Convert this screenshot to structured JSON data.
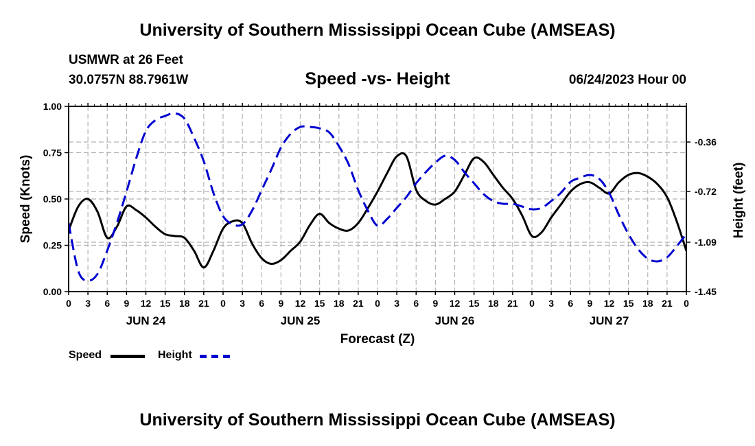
{
  "header": {
    "title": "University of Southern Mississippi Ocean Cube (AMSEAS)",
    "station": "USMWR at 26 Feet",
    "coords": "30.0757N  88.7961W",
    "subtitle": "Speed -vs- Height",
    "date": "06/24/2023 Hour 00"
  },
  "footer": {
    "title": "University of Southern Mississippi Ocean Cube (AMSEAS)"
  },
  "legend": {
    "speed_label": "Speed",
    "height_label": "Height"
  },
  "colors": {
    "speed": "#000000",
    "height": "#0000d0",
    "grid": "#b4b4b4"
  },
  "chart_data": {
    "type": "line",
    "title": "Speed -vs- Height",
    "xlabel": "Forecast (Z)",
    "ylabel": "Speed (Knots)",
    "y2label": "Height (feet)",
    "x_tick_labels": [
      "0",
      "3",
      "6",
      "9",
      "12",
      "15",
      "18",
      "21",
      "0",
      "3",
      "6",
      "9",
      "12",
      "15",
      "18",
      "21",
      "0",
      "3",
      "6",
      "9",
      "12",
      "15",
      "18",
      "21",
      "0",
      "3",
      "6",
      "9",
      "12",
      "15",
      "18",
      "21",
      "0"
    ],
    "date_labels": [
      {
        "label": "JUN 24",
        "hour": 12
      },
      {
        "label": "JUN 25",
        "hour": 36
      },
      {
        "label": "JUN 26",
        "hour": 60
      },
      {
        "label": "JUN 27",
        "hour": 84
      }
    ],
    "xlim": [
      0,
      96
    ],
    "ylim": [
      0,
      1.0
    ],
    "y_ticks": [
      "0.00",
      "0.25",
      "0.50",
      "0.75",
      "1.00"
    ],
    "y2lim": [
      -1.45,
      -0.1
    ],
    "y2_ticks": [
      {
        "value": -1.45,
        "label": "-1.45"
      },
      {
        "value": -1.09,
        "label": "-1.09"
      },
      {
        "value": -0.72,
        "label": "-0.72"
      },
      {
        "value": -0.36,
        "label": "-0.36"
      }
    ],
    "series": [
      {
        "name": "Speed",
        "axis": "left",
        "x": [
          0,
          1.5,
          3,
          4.5,
          6,
          7.5,
          9,
          10.5,
          12,
          13.5,
          15,
          16.5,
          18,
          19.5,
          21,
          22.5,
          24,
          25.5,
          27,
          28.5,
          30,
          31.5,
          33,
          34.5,
          36,
          37.5,
          39,
          40.5,
          42,
          43.5,
          45,
          46.5,
          48,
          49.5,
          51,
          52.5,
          54,
          55.5,
          57,
          58.5,
          60,
          61.5,
          63,
          64.5,
          66,
          67.5,
          69,
          70.5,
          72,
          73.5,
          75,
          76.5,
          78,
          79.5,
          81,
          82.5,
          84,
          85.5,
          87,
          88.5,
          90,
          91.5,
          93,
          94.5,
          96
        ],
        "values": [
          0.33,
          0.46,
          0.5,
          0.43,
          0.29,
          0.35,
          0.46,
          0.44,
          0.4,
          0.35,
          0.31,
          0.3,
          0.29,
          0.22,
          0.13,
          0.22,
          0.34,
          0.38,
          0.37,
          0.26,
          0.18,
          0.15,
          0.17,
          0.22,
          0.27,
          0.36,
          0.42,
          0.37,
          0.34,
          0.33,
          0.37,
          0.45,
          0.54,
          0.64,
          0.73,
          0.73,
          0.55,
          0.49,
          0.47,
          0.5,
          0.54,
          0.63,
          0.72,
          0.7,
          0.63,
          0.56,
          0.5,
          0.41,
          0.3,
          0.32,
          0.4,
          0.47,
          0.54,
          0.58,
          0.59,
          0.56,
          0.53,
          0.59,
          0.63,
          0.64,
          0.62,
          0.58,
          0.51,
          0.38,
          0.22
        ]
      },
      {
        "name": "Height",
        "axis": "right",
        "x": [
          0,
          1.5,
          3,
          4.5,
          6,
          7.5,
          9,
          10.5,
          12,
          13.5,
          15,
          16.5,
          18,
          19.5,
          21,
          22.5,
          24,
          25.5,
          27,
          28.5,
          30,
          31.5,
          33,
          34.5,
          36,
          37.5,
          39,
          40.5,
          42,
          43.5,
          45,
          46.5,
          48,
          49.5,
          51,
          52.5,
          54,
          55.5,
          57,
          58.5,
          60,
          61.5,
          63,
          64.5,
          66,
          67.5,
          69,
          70.5,
          72,
          73.5,
          75,
          76.5,
          78,
          79.5,
          81,
          82.5,
          84,
          85.5,
          87,
          88.5,
          90,
          91.5,
          93,
          94.5,
          96
        ],
        "values": [
          -0.95,
          -1.3,
          -1.37,
          -1.32,
          -1.15,
          -0.95,
          -0.72,
          -0.48,
          -0.28,
          -0.2,
          -0.17,
          -0.15,
          -0.19,
          -0.33,
          -0.5,
          -0.73,
          -0.9,
          -0.96,
          -0.96,
          -0.86,
          -0.71,
          -0.56,
          -0.4,
          -0.3,
          -0.25,
          -0.25,
          -0.26,
          -0.29,
          -0.39,
          -0.52,
          -0.71,
          -0.86,
          -0.97,
          -0.92,
          -0.84,
          -0.76,
          -0.66,
          -0.58,
          -0.51,
          -0.46,
          -0.49,
          -0.58,
          -0.66,
          -0.74,
          -0.79,
          -0.81,
          -0.81,
          -0.83,
          -0.85,
          -0.84,
          -0.79,
          -0.73,
          -0.65,
          -0.62,
          -0.6,
          -0.63,
          -0.73,
          -0.89,
          -1.03,
          -1.14,
          -1.21,
          -1.23,
          -1.2,
          -1.12,
          -1.03
        ]
      }
    ]
  }
}
